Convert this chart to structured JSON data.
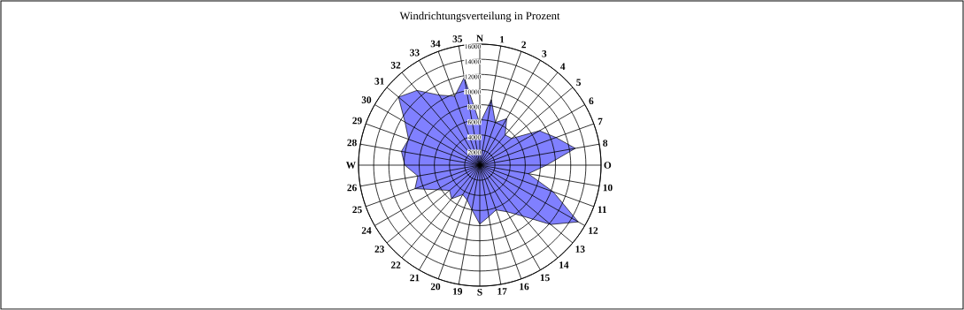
{
  "chart_data": {
    "type": "radar",
    "title": "Windrichtungsverteilung in Prozent",
    "categories": [
      "N",
      "1",
      "2",
      "3",
      "4",
      "5",
      "6",
      "7",
      "8",
      "O",
      "10",
      "11",
      "12",
      "13",
      "14",
      "15",
      "16",
      "17",
      "S",
      "19",
      "20",
      "21",
      "22",
      "23",
      "24",
      "25",
      "26",
      "W",
      "28",
      "29",
      "30",
      "31",
      "32",
      "33",
      "34",
      "35"
    ],
    "series": [
      {
        "color": "#8080ff",
        "values": [
          5500,
          8800,
          6000,
          7100,
          5200,
          5500,
          9100,
          10700,
          12800,
          8800,
          6500,
          10300,
          15000,
          12200,
          8800,
          7100,
          6300,
          6900,
          7800,
          6000,
          4900,
          4500,
          5800,
          5200,
          6500,
          9100,
          8300,
          9900,
          10500,
          10000,
          11400,
          14000,
          12900,
          10700,
          9700,
          11800
        ]
      }
    ],
    "ylim": [
      0,
      16000
    ],
    "yticks": [
      2000,
      4000,
      6000,
      8000,
      10000,
      12000,
      14000,
      16000
    ],
    "grid": true
  }
}
